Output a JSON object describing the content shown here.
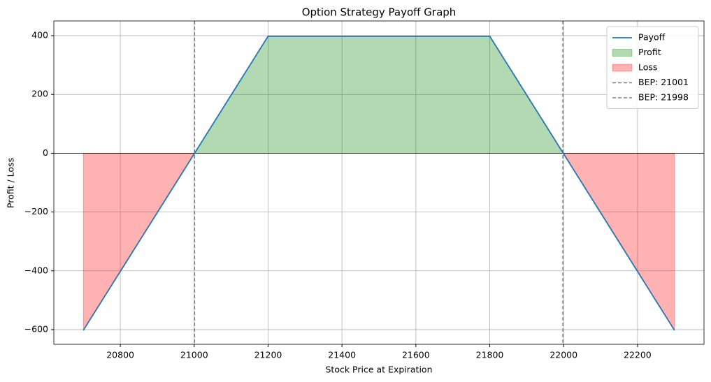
{
  "chart_data": {
    "type": "payoff",
    "title": "Option Strategy Payoff Graph",
    "x_label": "Stock Price at Expiration",
    "y_label": "Profit / Loss",
    "x": [
      20700,
      21200,
      21800,
      22300
    ],
    "series": [
      {
        "name": "Payoff",
        "color": "#1f77b4",
        "values": [
          -602,
          398,
          398,
          -602
        ]
      }
    ],
    "profit": {
      "name": "Profit",
      "color": "#008000"
    },
    "loss": {
      "name": "Loss",
      "color": "#ff0000"
    },
    "bep_lines": [
      {
        "name": "BEP: 21001",
        "value": 21001
      },
      {
        "name": "BEP: 21998",
        "value": 21998
      }
    ],
    "bep_color": "#808080",
    "hline": 0,
    "xlim": [
      20620,
      22380
    ],
    "ylim": [
      -650,
      450
    ],
    "xticks": [
      20800,
      21000,
      21200,
      21400,
      21600,
      21800,
      22000,
      22200
    ],
    "yticks": [
      {
        "value": -600,
        "label": "−600"
      },
      {
        "value": -400,
        "label": "−400"
      },
      {
        "value": -200,
        "label": "−200"
      },
      0,
      200,
      400
    ],
    "grid": true,
    "legend": "upper right"
  }
}
